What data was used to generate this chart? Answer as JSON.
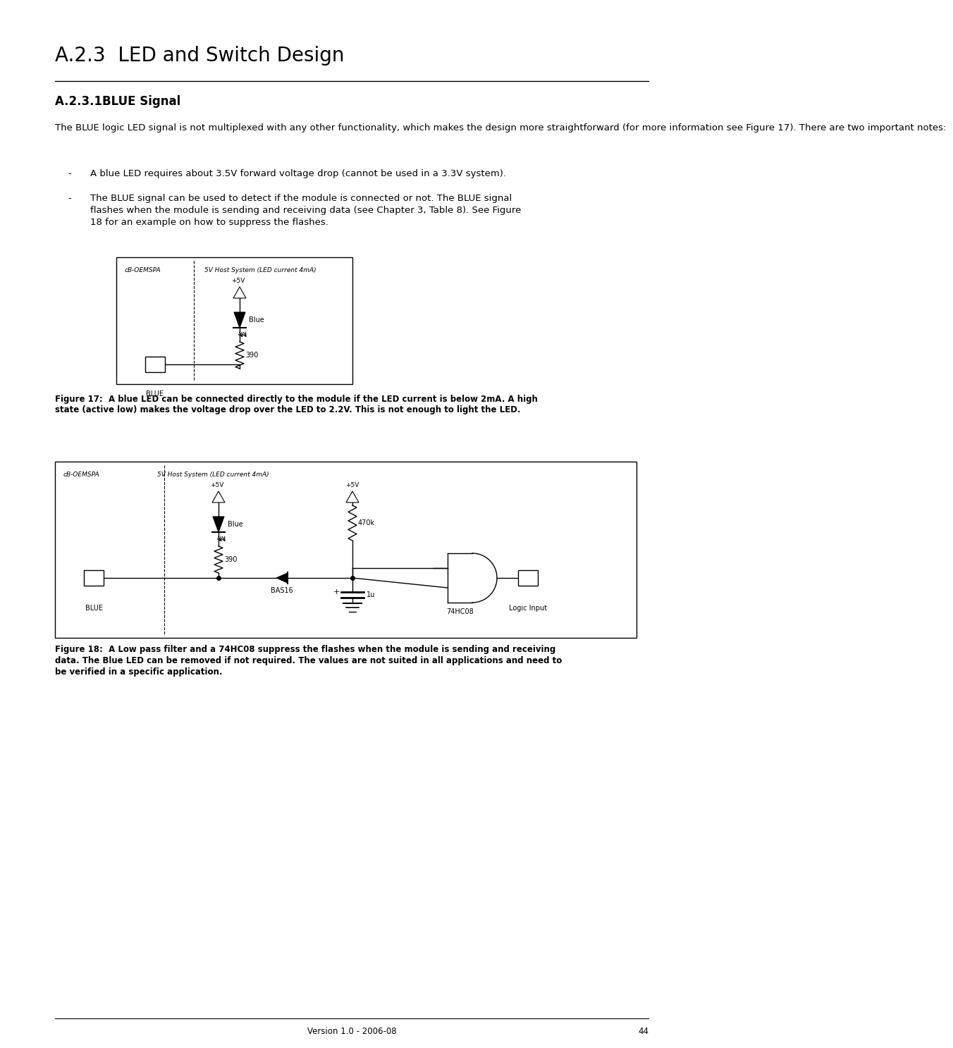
{
  "title": "A.2.3  LED and Switch Design",
  "section_title": "A.2.3.1BLUE Signal",
  "body_text1": "The BLUE logic LED signal is not multiplexed with any other functionality, which makes the design more straightforward (for more information see Figure 17). There are two important notes:",
  "bullet1": "A blue LED requires about 3.5V forward voltage drop (cannot be used in a 3.3V system).",
  "bullet2_line1": "The BLUE signal can be used to detect if the module is connected or not. The BLUE signal",
  "bullet2_line2": "flashes when the module is sending and receiving data (see Chapter 3, Table 8). See Figure",
  "bullet2_line3": "18 for an example on how to suppress the flashes.",
  "fig17_caption_line1": "Figure 17:  A blue LED can be connected directly to the module if the LED current is below 2mA. A high",
  "fig17_caption_line2": "state (active low) makes the voltage drop over the LED to 2.2V. This is not enough to light the LED.",
  "fig18_caption_line1": "Figure 18:  A Low pass filter and a 74HC08 suppress the flashes when the module is sending and receiving",
  "fig18_caption_line2": "data. The Blue LED can be removed if not required. The values are not suited in all applications and need to",
  "fig18_caption_line3": "be verified in a specific application.",
  "footer_text": "Version 1.0 - 2006-08",
  "footer_page": "44",
  "bg_color": "#ffffff",
  "text_color": "#000000"
}
